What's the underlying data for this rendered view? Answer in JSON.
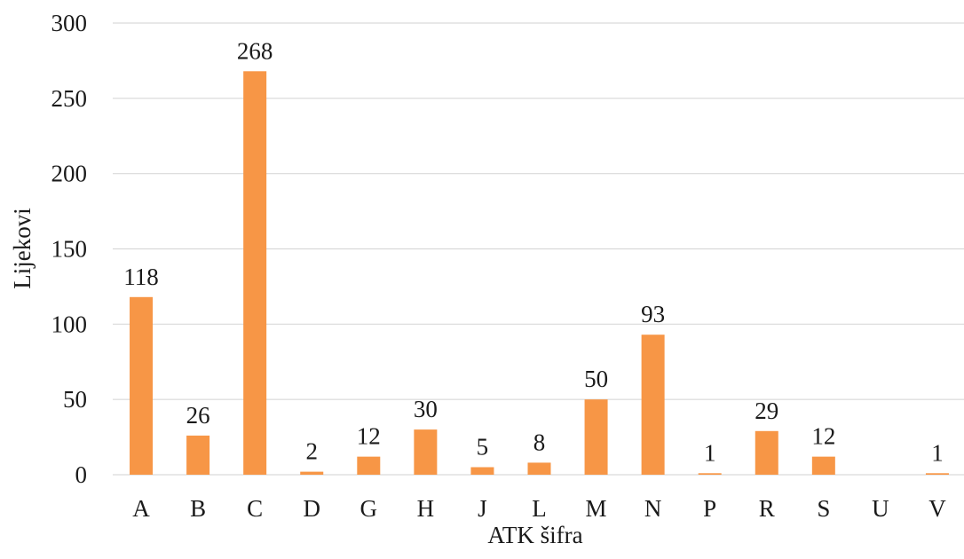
{
  "chart_data": {
    "type": "bar",
    "title": "",
    "xlabel": "ATK šifra",
    "ylabel": "Lijekovi",
    "categories": [
      "A",
      "B",
      "C",
      "D",
      "G",
      "H",
      "J",
      "L",
      "M",
      "N",
      "P",
      "R",
      "S",
      "U",
      "V"
    ],
    "values": [
      118,
      26,
      268,
      2,
      12,
      30,
      5,
      8,
      50,
      93,
      1,
      29,
      12,
      0,
      1
    ],
    "data_labels": [
      "118",
      "26",
      "268",
      "2",
      "12",
      "30",
      "5",
      "8",
      "50",
      "93",
      "1",
      "29",
      "12",
      "",
      "1"
    ],
    "ylim": [
      0,
      300
    ],
    "yticks": [
      0,
      50,
      100,
      150,
      200,
      250,
      300
    ],
    "grid": true,
    "legend": "none",
    "colors": {
      "bar": "#f79646",
      "grid": "#d9d9d9",
      "text": "#1a1a1a"
    }
  }
}
